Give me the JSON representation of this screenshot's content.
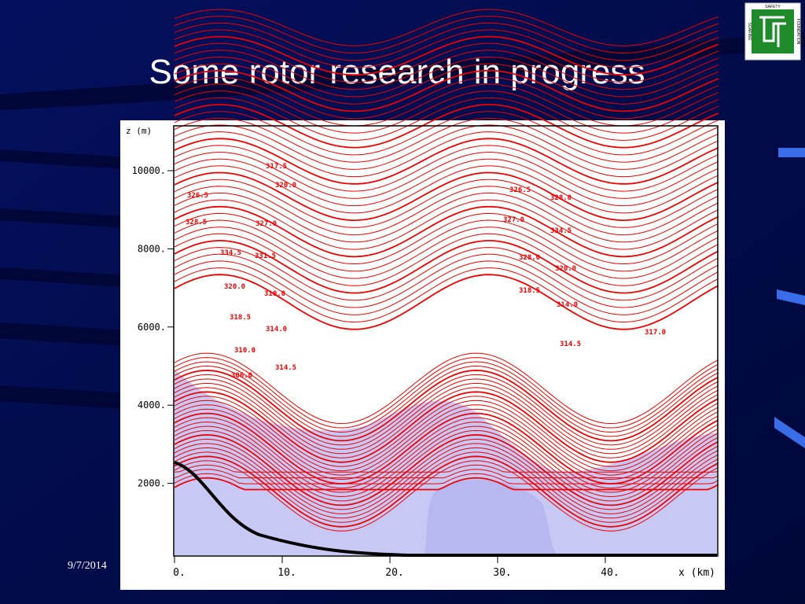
{
  "slide": {
    "title": "Some rotor research in progress",
    "date": "9/7/2014",
    "logo": {
      "lines": [
        "SAFETY",
        "SOARING",
        "FOUNDATION"
      ]
    },
    "figure": {
      "y_axis_label": "z (m)",
      "y_ticks": [
        "10000.",
        "8000.",
        "6000.",
        "4000.",
        "2000."
      ],
      "x_axis_label": "x (km)",
      "x_ticks": [
        "0.",
        "10.",
        "20.",
        "30.",
        "40."
      ],
      "contour_labels": [
        "317.5",
        "320.0",
        "326.5",
        "328.5",
        "327.0",
        "334.5",
        "331.5",
        "320.0",
        "310.0",
        "318.5",
        "314.0",
        "310.0",
        "314.5",
        "306.0",
        "326.5",
        "328.0",
        "327.0",
        "334.5",
        "328.0",
        "320.0",
        "318.5",
        "314.0",
        "317.0",
        "314.5"
      ]
    }
  }
}
